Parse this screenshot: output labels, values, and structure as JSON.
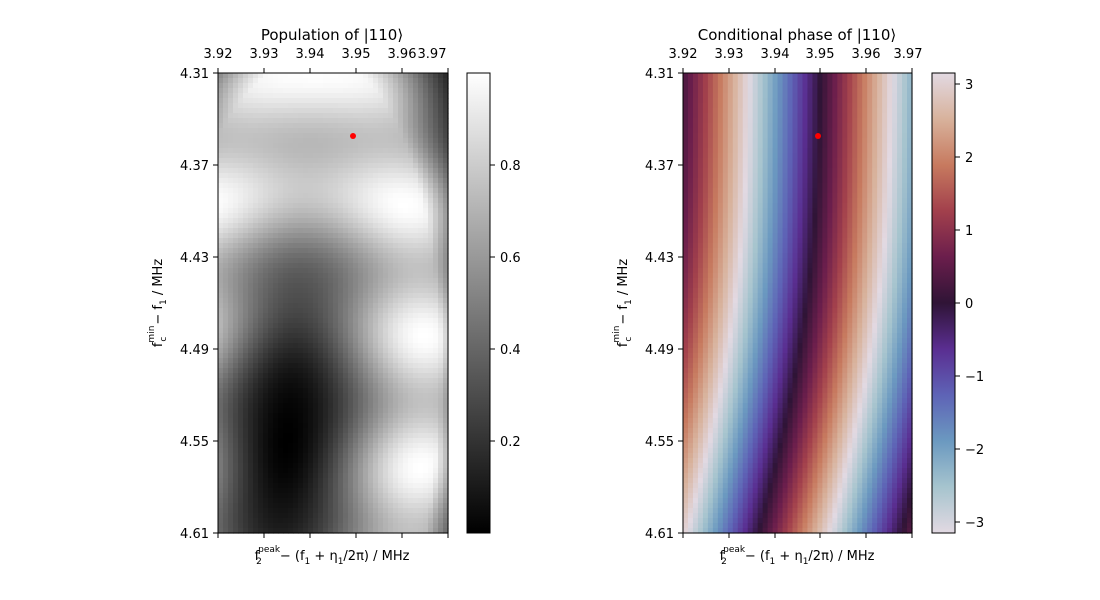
{
  "chart_data": [
    {
      "type": "heatmap",
      "title": "Population of |110⟩",
      "xlabel_parts": {
        "f": "f",
        "sup": "peak",
        "sub": "2",
        "rest": "− (f",
        "rest_sub": "1",
        "rest2": " + η",
        "rest2_sub": "1",
        "rest3": "/2π) / MHz"
      },
      "ylabel_parts": {
        "f": "f",
        "sup": "min",
        "sub": "c",
        "rest": "− f",
        "rest_sub": "1",
        "rest2": " / MHz"
      },
      "x_ticks": [
        "3.92",
        "3.93",
        "3.94",
        "3.95",
        "3.96",
        "3.97"
      ],
      "y_ticks": [
        "4.31",
        "4.37",
        "4.43",
        "4.49",
        "4.55",
        "4.61"
      ],
      "xlim": [
        3.92,
        3.97
      ],
      "ylim": [
        4.31,
        4.61
      ],
      "colormap": "gray",
      "colorbar_ticks": [
        "0.2",
        "0.4",
        "0.6",
        "0.8"
      ],
      "colorbar_values": [
        0.2,
        0.4,
        0.6,
        0.8
      ],
      "clim": [
        0.0,
        1.0
      ],
      "marker": {
        "x": 3.9495,
        "y": 4.352,
        "color": "#ff0000"
      }
    },
    {
      "type": "heatmap",
      "title": "Conditional phase of |110⟩",
      "xlabel_parts": {
        "f": "f",
        "sup": "peak",
        "sub": "2",
        "rest": "− (f",
        "rest_sub": "1",
        "rest2": " + η",
        "rest2_sub": "1",
        "rest3": "/2π) / MHz"
      },
      "ylabel_parts": {
        "f": "f",
        "sup": "min",
        "sub": "c",
        "rest": "− f",
        "rest_sub": "1",
        "rest2": " / MHz"
      },
      "x_ticks": [
        "3.92",
        "3.93",
        "3.94",
        "3.95",
        "3.96",
        "3.97"
      ],
      "y_ticks": [
        "4.31",
        "4.37",
        "4.43",
        "4.49",
        "4.55",
        "4.61"
      ],
      "xlim": [
        3.92,
        3.97
      ],
      "ylim": [
        4.31,
        4.61
      ],
      "colormap": "twilight",
      "colorbar_ticks": [
        "3",
        "2",
        "1",
        "0",
        "−1",
        "−2",
        "−3"
      ],
      "colorbar_values": [
        3,
        2,
        1,
        0,
        -1,
        -2,
        -3
      ],
      "clim": [
        -3.14159,
        3.14159
      ],
      "marker": {
        "x": 3.9495,
        "y": 4.352,
        "color": "#ff0000"
      }
    }
  ]
}
